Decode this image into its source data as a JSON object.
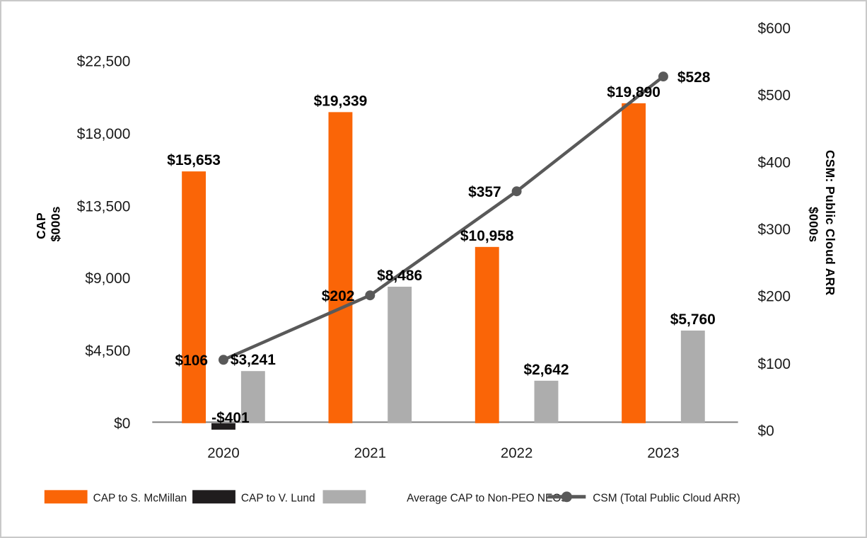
{
  "chart_data": {
    "type": "bar",
    "subtype": "grouped-bars-with-line-overlay",
    "categories": [
      "2020",
      "2021",
      "2022",
      "2023"
    ],
    "bar_series": [
      {
        "name": "CAP to S. McMillan",
        "color": "#FA6507",
        "values": [
          15653,
          19339,
          10958,
          19890
        ],
        "labels": [
          "$15,653",
          "$19,339",
          "$10,958",
          "$19,890"
        ]
      },
      {
        "name": "CAP to V. Lund",
        "color": "#201d1e",
        "values": [
          -401,
          null,
          null,
          null
        ],
        "labels": [
          "-$401",
          "",
          "",
          ""
        ]
      },
      {
        "name": "Average CAP to Non-PEO NEOs",
        "color": "#adadad",
        "values": [
          3241,
          8486,
          2642,
          5760
        ],
        "labels": [
          "$3,241",
          "$8,486",
          "$2,642",
          "$5,760"
        ]
      }
    ],
    "line_series": {
      "name": "CSM (Total Public Cloud ARR)",
      "color": "#595959",
      "axis": "right",
      "values": [
        106,
        202,
        357,
        528
      ],
      "labels": [
        "$106",
        "$202",
        "$357",
        "$528"
      ]
    },
    "left_axis": {
      "title_lines": [
        "CAP",
        "$000s"
      ],
      "ticks": [
        "$0",
        "$4,500",
        "$9,000",
        "$13,500",
        "$18,000",
        "$22,500"
      ],
      "tick_values": [
        0,
        4500,
        9000,
        13500,
        18000,
        22500
      ],
      "range": [
        0,
        22500
      ]
    },
    "right_axis": {
      "title_lines": [
        "CSM: Public Cloud ARR",
        "$000s"
      ],
      "ticks": [
        "$0",
        "$100",
        "$200",
        "$300",
        "$400",
        "$500",
        "$600"
      ],
      "tick_values": [
        0,
        100,
        200,
        300,
        400,
        500,
        600
      ],
      "range": [
        0,
        600
      ]
    },
    "legend_position": "bottom",
    "grid": "off",
    "axis_line_color": "#7f7f7f",
    "title": ""
  }
}
